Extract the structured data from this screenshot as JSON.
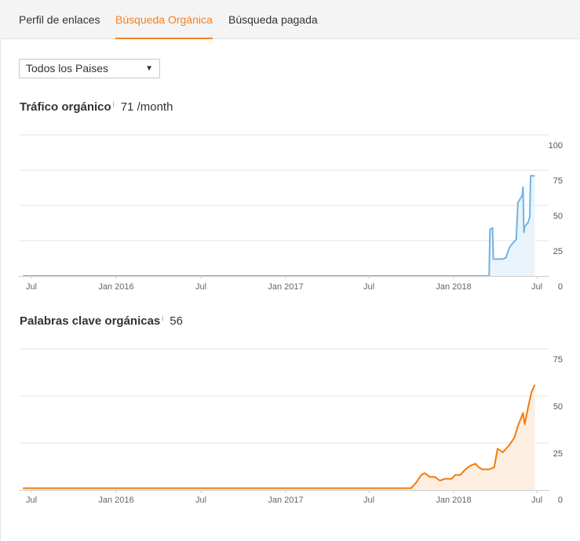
{
  "tabs": [
    {
      "label": "Perfil de enlaces",
      "active": false
    },
    {
      "label": "Búsqueda Orgánica",
      "active": true
    },
    {
      "label": "Búsqueda pagada",
      "active": false
    }
  ],
  "country_select": {
    "value": "Todos los Paises"
  },
  "traffic": {
    "title": "Tráfico orgánico",
    "info": "i",
    "value": "71",
    "unit": "/month"
  },
  "keywords": {
    "title": "Palabras clave orgánicas",
    "info": "i",
    "value": "56"
  },
  "colors": {
    "accent": "#f58220",
    "traffic_line": "#72b3e2",
    "traffic_fill": "#eaf4fc",
    "keywords_line": "#f07d0f",
    "keywords_fill": "#fdeee2"
  },
  "chart_data": [
    {
      "type": "area",
      "x_ticks": [
        "Jul",
        "Jan 2016",
        "Jul",
        "Jan 2017",
        "Jul",
        "Jan 2018",
        "Jul"
      ],
      "y_ticks": [
        "100",
        "75",
        "50",
        "25",
        "0"
      ],
      "ylim": [
        0,
        100
      ],
      "xlim": [
        2015.5,
        2018.55
      ],
      "grid": true,
      "series": [
        {
          "points": [
            [
              2015.45,
              0
            ],
            [
              2018.2,
              0
            ],
            [
              2018.205,
              33
            ],
            [
              2018.22,
              34
            ],
            [
              2018.225,
              12
            ],
            [
              2018.28,
              12
            ],
            [
              2018.3,
              13
            ],
            [
              2018.31,
              17
            ],
            [
              2018.32,
              20
            ],
            [
              2018.33,
              22
            ],
            [
              2018.36,
              26
            ],
            [
              2018.37,
              52
            ],
            [
              2018.395,
              57
            ],
            [
              2018.4,
              63
            ],
            [
              2018.405,
              31
            ],
            [
              2018.41,
              35
            ],
            [
              2018.43,
              38
            ],
            [
              2018.44,
              42
            ],
            [
              2018.445,
              71
            ],
            [
              2018.47,
              71
            ]
          ]
        }
      ]
    },
    {
      "type": "area",
      "x_ticks": [
        "Jul",
        "Jan 2016",
        "Jul",
        "Jan 2017",
        "Jul",
        "Jan 2018",
        "Jul"
      ],
      "y_ticks": [
        "75",
        "50",
        "25",
        "0"
      ],
      "ylim": [
        0,
        75
      ],
      "xlim": [
        2015.5,
        2018.55
      ],
      "grid": true,
      "series": [
        {
          "points": [
            [
              2015.45,
              1
            ],
            [
              2017.74,
              1
            ],
            [
              2017.77,
              4
            ],
            [
              2017.8,
              8
            ],
            [
              2017.82,
              9
            ],
            [
              2017.85,
              7
            ],
            [
              2017.88,
              7
            ],
            [
              2017.91,
              5
            ],
            [
              2017.94,
              6
            ],
            [
              2017.98,
              6
            ],
            [
              2018.0,
              8
            ],
            [
              2018.03,
              8
            ],
            [
              2018.06,
              11
            ],
            [
              2018.09,
              13
            ],
            [
              2018.12,
              14
            ],
            [
              2018.14,
              12
            ],
            [
              2018.16,
              11
            ],
            [
              2018.2,
              11
            ],
            [
              2018.23,
              12
            ],
            [
              2018.25,
              22
            ],
            [
              2018.28,
              20
            ],
            [
              2018.32,
              24
            ],
            [
              2018.35,
              28
            ],
            [
              2018.37,
              34
            ],
            [
              2018.4,
              41
            ],
            [
              2018.41,
              35
            ],
            [
              2018.43,
              44
            ],
            [
              2018.45,
              52
            ],
            [
              2018.47,
              56
            ]
          ]
        }
      ]
    }
  ]
}
